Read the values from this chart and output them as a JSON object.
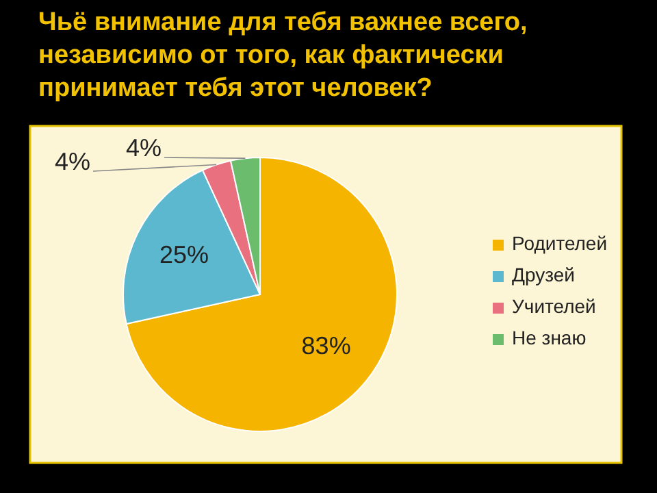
{
  "chart_data": {
    "type": "pie",
    "title": "Чьё внимание для тебя важнее всего, независимо от того, как фактически принимает тебя этот человек?",
    "categories": [
      "Родителей",
      "Друзей",
      "Учителей",
      "Не знаю"
    ],
    "values": [
      83,
      25,
      4,
      4
    ],
    "colors": [
      "#f5b400",
      "#5cb8cf",
      "#e8707f",
      "#6cbc6e"
    ],
    "value_labels": [
      "83%",
      "25%",
      "4%",
      "4%"
    ],
    "legend": "right"
  }
}
